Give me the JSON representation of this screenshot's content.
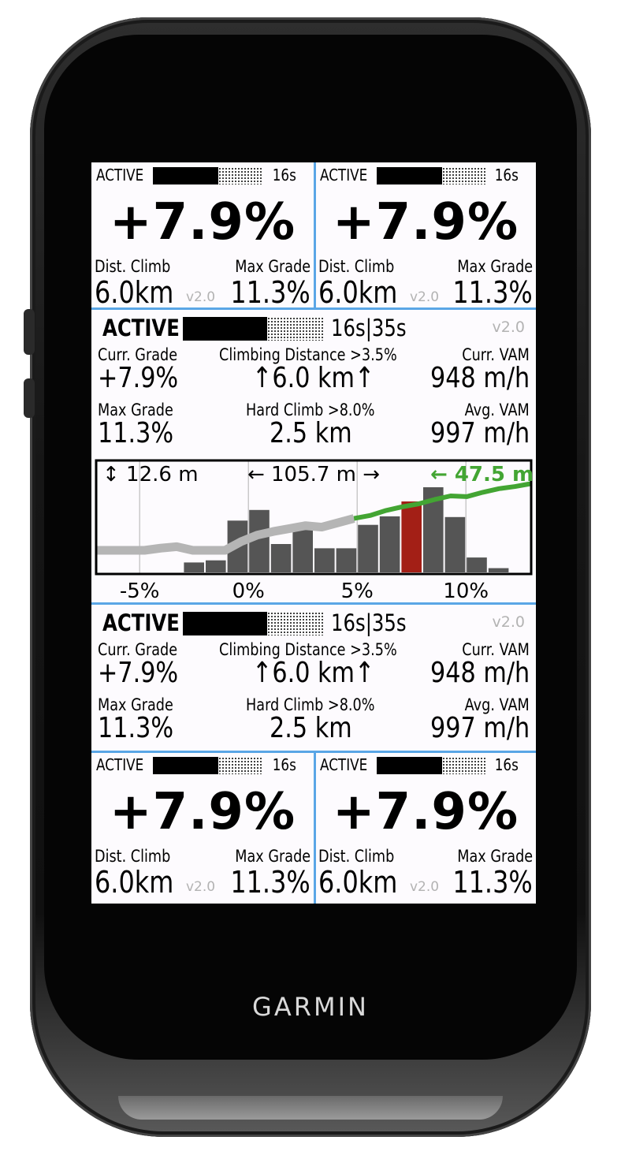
{
  "device": {
    "brand": "GARMIN"
  },
  "small_field": {
    "status": "ACTIVE",
    "timer": "16s",
    "grade": "+7.9%",
    "dist_label": "Dist. Climb",
    "max_label": "Max Grade",
    "dist_value": "6.0km",
    "version": "v2.0",
    "max_value": "11.3%",
    "progress_fraction": 0.6
  },
  "wide_field": {
    "status": "ACTIVE",
    "timer": "16s|35s",
    "version": "v2.0",
    "curr_grade_label": "Curr. Grade",
    "curr_grade_value": "+7.9%",
    "climb_dist_label": "Climbing Distance >3.5%",
    "climb_dist_value": "↑6.0 km↑",
    "curr_vam_label": "Curr. VAM",
    "curr_vam_value": "948 m/h",
    "max_grade_label": "Max Grade",
    "max_grade_value": "11.3%",
    "hard_climb_label": "Hard Climb >8.0%",
    "hard_climb_value": "2.5 km",
    "avg_vam_label": "Avg. VAM",
    "avg_vam_value": "997 m/h",
    "progress_fraction": 0.6
  },
  "chart_data": {
    "type": "bar",
    "elevation_gain": "↕ 12.6 m",
    "distance": "← 105.7 m →",
    "climb_distance": "← 47.5 m",
    "x_ticks": [
      "-5%",
      "0%",
      "5%",
      "10%"
    ],
    "x_range": [
      -7,
      13
    ],
    "values": [
      0,
      0,
      0,
      0,
      3,
      5,
      0,
      0,
      0,
      12,
      21,
      26,
      30,
      34,
      32,
      38,
      44,
      48,
      55,
      60,
      64,
      70,
      75,
      74,
      80,
      85,
      88,
      92
    ],
    "histogram": [
      {
        "grade": -2.5,
        "height": 0.14
      },
      {
        "grade": -1.5,
        "height": 0.17
      },
      {
        "grade": -0.5,
        "height": 0.73
      },
      {
        "grade": 0.5,
        "height": 0.88
      },
      {
        "grade": 1.5,
        "height": 0.4
      },
      {
        "grade": 2.5,
        "height": 0.67
      },
      {
        "grade": 3.5,
        "height": 0.34
      },
      {
        "grade": 4.5,
        "height": 0.34
      },
      {
        "grade": 5.5,
        "height": 0.67
      },
      {
        "grade": 6.5,
        "height": 0.79
      },
      {
        "grade": 7.5,
        "height": 1.0,
        "current": true
      },
      {
        "grade": 8.5,
        "height": 1.2
      },
      {
        "grade": 9.5,
        "height": 0.78
      },
      {
        "grade": 10.5,
        "height": 0.21
      },
      {
        "grade": 11.5,
        "height": 0.06
      }
    ],
    "colors": {
      "bar": "#555555",
      "current_bar": "#a31f16",
      "profile": "#b5b5b5",
      "climb_profile": "#43a533",
      "climb_label": "#43a533"
    }
  }
}
